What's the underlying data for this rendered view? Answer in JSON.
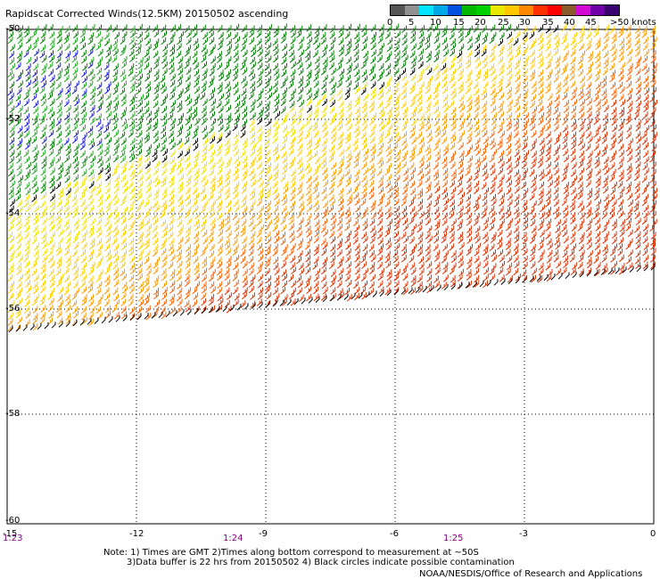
{
  "title": "Rapidscat Corrected Winds(12.5KM) 20150502 ascending",
  "legend": {
    "labels": [
      "0",
      "5",
      "10",
      "15",
      "20",
      "25",
      "30",
      "35",
      "40",
      "45",
      ">50 knots"
    ],
    "colors": [
      "#555555",
      "#909090",
      "#00e5ff",
      "#00a8e8",
      "#0050e0",
      "#00b800",
      "#00d000",
      "#e8e800",
      "#ffc800",
      "#ff8800",
      "#ff3000",
      "#ff0000",
      "#8b5a2b",
      "#d20ad2",
      "#7000a8",
      "#3a0070"
    ]
  },
  "map": {
    "x_ticks": [
      "-15",
      "-12",
      "-9",
      "-6",
      "-3",
      "0"
    ],
    "y_ticks": [
      "-50",
      "-52",
      "-54",
      "-56",
      "-58",
      "-60"
    ],
    "times": [
      "1:23",
      "1:24",
      "1:25"
    ]
  },
  "footer": {
    "note1": "Note: 1) Times are GMT 2)Times along bottom correspond to measurement at ~50S",
    "note2": "3)Data buffer is 22 hrs from 20150502 4) Black circles indicate possible contamination",
    "credit": "NOAA/NESDIS/Office of Research and Applications"
  },
  "chart_data": {
    "type": "wind-barb-map",
    "x_range": [
      -15,
      0
    ],
    "y_range": [
      -60,
      -50
    ],
    "color_scale_knots": [
      0,
      5,
      10,
      15,
      20,
      25,
      30,
      35,
      40,
      45,
      50
    ],
    "wind_regions": [
      {
        "region": "north-west",
        "speed_knots": "5-15",
        "color": "blue/green"
      },
      {
        "region": "north-central",
        "speed_knots": "15-20",
        "color": "green"
      },
      {
        "region": "central band",
        "speed_knots": "20-25",
        "color": "yellow"
      },
      {
        "region": "south-east",
        "speed_knots": "25-35",
        "color": "orange/red"
      }
    ]
  }
}
